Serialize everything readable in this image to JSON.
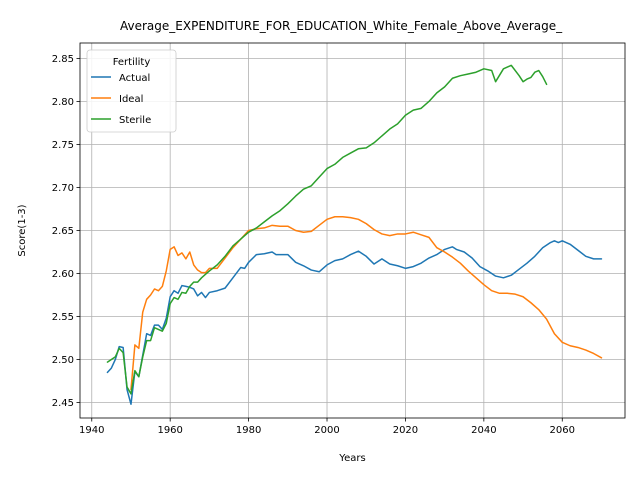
{
  "chart_data": {
    "type": "line",
    "title": "Average_EXPENDITURE_FOR_EDUCATION_White_Female_Above_Average_",
    "xlabel": "Years",
    "ylabel": "Score(1-3)",
    "xlim": [
      1937,
      2076
    ],
    "ylim": [
      2.432,
      2.868
    ],
    "xticks": [
      1940,
      1960,
      1980,
      2000,
      2020,
      2040,
      2060
    ],
    "yticks": [
      2.45,
      2.5,
      2.55,
      2.6,
      2.65,
      2.7,
      2.75,
      2.8,
      2.85
    ],
    "grid": true,
    "legend": {
      "title": "Fertility",
      "placement": "upper-left"
    },
    "series": [
      {
        "name": "Actual",
        "color": "#1f77b4",
        "points": [
          [
            1944,
            2.485
          ],
          [
            1945,
            2.49
          ],
          [
            1946,
            2.5
          ],
          [
            1947,
            2.515
          ],
          [
            1948,
            2.514
          ],
          [
            1949,
            2.465
          ],
          [
            1950,
            2.448
          ],
          [
            1951,
            2.486
          ],
          [
            1952,
            2.48
          ],
          [
            1953,
            2.505
          ],
          [
            1954,
            2.53
          ],
          [
            1955,
            2.528
          ],
          [
            1956,
            2.54
          ],
          [
            1957,
            2.54
          ],
          [
            1958,
            2.535
          ],
          [
            1959,
            2.548
          ],
          [
            1960,
            2.573
          ],
          [
            1961,
            2.58
          ],
          [
            1962,
            2.577
          ],
          [
            1963,
            2.586
          ],
          [
            1964,
            2.585
          ],
          [
            1965,
            2.584
          ],
          [
            1966,
            2.582
          ],
          [
            1967,
            2.574
          ],
          [
            1968,
            2.578
          ],
          [
            1969,
            2.572
          ],
          [
            1970,
            2.578
          ],
          [
            1972,
            2.58
          ],
          [
            1974,
            2.583
          ],
          [
            1976,
            2.595
          ],
          [
            1978,
            2.607
          ],
          [
            1979,
            2.606
          ],
          [
            1980,
            2.613
          ],
          [
            1982,
            2.622
          ],
          [
            1984,
            2.623
          ],
          [
            1986,
            2.625
          ],
          [
            1987,
            2.622
          ],
          [
            1990,
            2.622
          ],
          [
            1992,
            2.613
          ],
          [
            1994,
            2.609
          ],
          [
            1996,
            2.604
          ],
          [
            1998,
            2.602
          ],
          [
            2000,
            2.61
          ],
          [
            2002,
            2.615
          ],
          [
            2004,
            2.617
          ],
          [
            2006,
            2.622
          ],
          [
            2008,
            2.626
          ],
          [
            2010,
            2.62
          ],
          [
            2012,
            2.611
          ],
          [
            2014,
            2.617
          ],
          [
            2016,
            2.611
          ],
          [
            2018,
            2.609
          ],
          [
            2020,
            2.606
          ],
          [
            2022,
            2.608
          ],
          [
            2024,
            2.612
          ],
          [
            2026,
            2.618
          ],
          [
            2028,
            2.622
          ],
          [
            2030,
            2.628
          ],
          [
            2032,
            2.631
          ],
          [
            2033,
            2.628
          ],
          [
            2035,
            2.625
          ],
          [
            2037,
            2.618
          ],
          [
            2039,
            2.608
          ],
          [
            2041,
            2.603
          ],
          [
            2043,
            2.597
          ],
          [
            2045,
            2.595
          ],
          [
            2047,
            2.598
          ],
          [
            2049,
            2.605
          ],
          [
            2051,
            2.612
          ],
          [
            2053,
            2.62
          ],
          [
            2055,
            2.63
          ],
          [
            2057,
            2.636
          ],
          [
            2058,
            2.638
          ],
          [
            2059,
            2.636
          ],
          [
            2060,
            2.638
          ],
          [
            2062,
            2.634
          ],
          [
            2064,
            2.627
          ],
          [
            2066,
            2.62
          ],
          [
            2068,
            2.617
          ],
          [
            2070,
            2.617
          ]
        ]
      },
      {
        "name": "Ideal",
        "color": "#ff7f0e",
        "points": [
          [
            1950,
            2.465
          ],
          [
            1951,
            2.517
          ],
          [
            1952,
            2.513
          ],
          [
            1953,
            2.555
          ],
          [
            1954,
            2.57
          ],
          [
            1955,
            2.575
          ],
          [
            1956,
            2.582
          ],
          [
            1957,
            2.58
          ],
          [
            1958,
            2.585
          ],
          [
            1959,
            2.603
          ],
          [
            1960,
            2.628
          ],
          [
            1961,
            2.631
          ],
          [
            1962,
            2.621
          ],
          [
            1963,
            2.624
          ],
          [
            1964,
            2.617
          ],
          [
            1965,
            2.625
          ],
          [
            1966,
            2.61
          ],
          [
            1967,
            2.604
          ],
          [
            1968,
            2.601
          ],
          [
            1969,
            2.601
          ],
          [
            1970,
            2.606
          ],
          [
            1972,
            2.606
          ],
          [
            1974,
            2.618
          ],
          [
            1976,
            2.63
          ],
          [
            1978,
            2.64
          ],
          [
            1980,
            2.65
          ],
          [
            1982,
            2.652
          ],
          [
            1984,
            2.653
          ],
          [
            1986,
            2.656
          ],
          [
            1988,
            2.655
          ],
          [
            1990,
            2.655
          ],
          [
            1992,
            2.65
          ],
          [
            1994,
            2.648
          ],
          [
            1996,
            2.649
          ],
          [
            1998,
            2.656
          ],
          [
            2000,
            2.663
          ],
          [
            2002,
            2.666
          ],
          [
            2004,
            2.666
          ],
          [
            2006,
            2.665
          ],
          [
            2008,
            2.663
          ],
          [
            2010,
            2.658
          ],
          [
            2012,
            2.651
          ],
          [
            2014,
            2.646
          ],
          [
            2016,
            2.644
          ],
          [
            2018,
            2.646
          ],
          [
            2020,
            2.646
          ],
          [
            2022,
            2.648
          ],
          [
            2024,
            2.645
          ],
          [
            2026,
            2.642
          ],
          [
            2028,
            2.63
          ],
          [
            2030,
            2.625
          ],
          [
            2032,
            2.619
          ],
          [
            2034,
            2.612
          ],
          [
            2036,
            2.603
          ],
          [
            2038,
            2.595
          ],
          [
            2040,
            2.587
          ],
          [
            2042,
            2.58
          ],
          [
            2044,
            2.577
          ],
          [
            2046,
            2.577
          ],
          [
            2048,
            2.576
          ],
          [
            2050,
            2.573
          ],
          [
            2052,
            2.566
          ],
          [
            2054,
            2.558
          ],
          [
            2056,
            2.547
          ],
          [
            2058,
            2.53
          ],
          [
            2060,
            2.52
          ],
          [
            2062,
            2.516
          ],
          [
            2064,
            2.514
          ],
          [
            2066,
            2.511
          ],
          [
            2068,
            2.507
          ],
          [
            2070,
            2.502
          ]
        ]
      },
      {
        "name": "Sterile",
        "color": "#2ca02c",
        "points": [
          [
            1944,
            2.497
          ],
          [
            1945,
            2.5
          ],
          [
            1946,
            2.503
          ],
          [
            1947,
            2.513
          ],
          [
            1948,
            2.508
          ],
          [
            1949,
            2.468
          ],
          [
            1950,
            2.46
          ],
          [
            1951,
            2.487
          ],
          [
            1952,
            2.48
          ],
          [
            1953,
            2.503
          ],
          [
            1954,
            2.522
          ],
          [
            1955,
            2.522
          ],
          [
            1956,
            2.537
          ],
          [
            1957,
            2.535
          ],
          [
            1958,
            2.533
          ],
          [
            1959,
            2.542
          ],
          [
            1960,
            2.565
          ],
          [
            1961,
            2.572
          ],
          [
            1962,
            2.57
          ],
          [
            1963,
            2.578
          ],
          [
            1964,
            2.577
          ],
          [
            1965,
            2.585
          ],
          [
            1966,
            2.59
          ],
          [
            1967,
            2.59
          ],
          [
            1968,
            2.595
          ],
          [
            1969,
            2.599
          ],
          [
            1970,
            2.603
          ],
          [
            1972,
            2.61
          ],
          [
            1974,
            2.62
          ],
          [
            1976,
            2.632
          ],
          [
            1978,
            2.64
          ],
          [
            1980,
            2.648
          ],
          [
            1982,
            2.653
          ],
          [
            1984,
            2.66
          ],
          [
            1986,
            2.667
          ],
          [
            1988,
            2.673
          ],
          [
            1990,
            2.681
          ],
          [
            1992,
            2.69
          ],
          [
            1994,
            2.698
          ],
          [
            1996,
            2.702
          ],
          [
            1998,
            2.712
          ],
          [
            2000,
            2.722
          ],
          [
            2002,
            2.727
          ],
          [
            2004,
            2.735
          ],
          [
            2006,
            2.74
          ],
          [
            2008,
            2.745
          ],
          [
            2010,
            2.746
          ],
          [
            2012,
            2.752
          ],
          [
            2014,
            2.76
          ],
          [
            2016,
            2.768
          ],
          [
            2018,
            2.774
          ],
          [
            2020,
            2.784
          ],
          [
            2022,
            2.79
          ],
          [
            2024,
            2.792
          ],
          [
            2026,
            2.8
          ],
          [
            2028,
            2.81
          ],
          [
            2030,
            2.817
          ],
          [
            2032,
            2.827
          ],
          [
            2034,
            2.83
          ],
          [
            2036,
            2.832
          ],
          [
            2038,
            2.834
          ],
          [
            2040,
            2.838
          ],
          [
            2042,
            2.836
          ],
          [
            2043,
            2.823
          ],
          [
            2045,
            2.838
          ],
          [
            2047,
            2.842
          ],
          [
            2049,
            2.83
          ],
          [
            2050,
            2.823
          ],
          [
            2051,
            2.826
          ],
          [
            2052,
            2.828
          ],
          [
            2053,
            2.834
          ],
          [
            2054,
            2.836
          ],
          [
            2055,
            2.829
          ],
          [
            2056,
            2.82
          ]
        ]
      }
    ]
  }
}
